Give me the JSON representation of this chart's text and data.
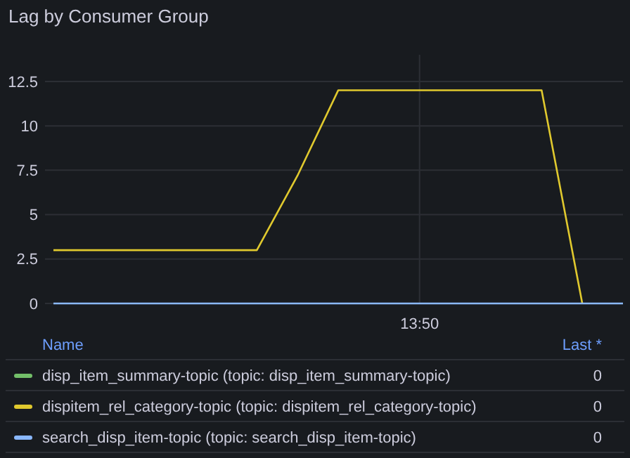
{
  "chart_data": {
    "type": "line",
    "title": "Lag by Consumer Group",
    "legend": "bottom",
    "legend_title": "Name",
    "annotations": [
      "Last *",
      "0",
      "0",
      "0"
    ],
    "categories": [
      null,
      null,
      null,
      null,
      null,
      null,
      null,
      null,
      null,
      "13:50",
      null,
      null,
      null,
      null,
      null
    ],
    "ylim": [
      0,
      14
    ],
    "yticks": [
      0,
      2.5,
      5,
      7.5,
      10,
      12.5
    ],
    "grid": true,
    "marker": "none",
    "line_style": "solid",
    "series": [
      {
        "name": "disp_item_summary-topic (topic: disp_item_summary-topic)",
        "color": "#73bf69",
        "values": [
          null,
          null,
          null,
          null,
          null,
          null,
          null,
          null,
          null,
          null,
          null,
          null,
          null,
          null,
          null
        ]
      },
      {
        "name": "dispitem_rel_category-topic (topic: dispitem_rel_category-topic)",
        "color": "#e0c92e",
        "values": [
          3,
          3,
          3,
          3,
          3,
          3,
          7.2,
          12,
          12,
          12,
          12,
          12,
          12,
          0,
          null
        ]
      },
      {
        "name": "search_disp_item-topic (topic: search_disp_item-topic)",
        "color": "#8ab8ff",
        "values": [
          0,
          0,
          0,
          0,
          0,
          0,
          0,
          0,
          0,
          0,
          0,
          0,
          0,
          0,
          0
        ]
      }
    ]
  }
}
